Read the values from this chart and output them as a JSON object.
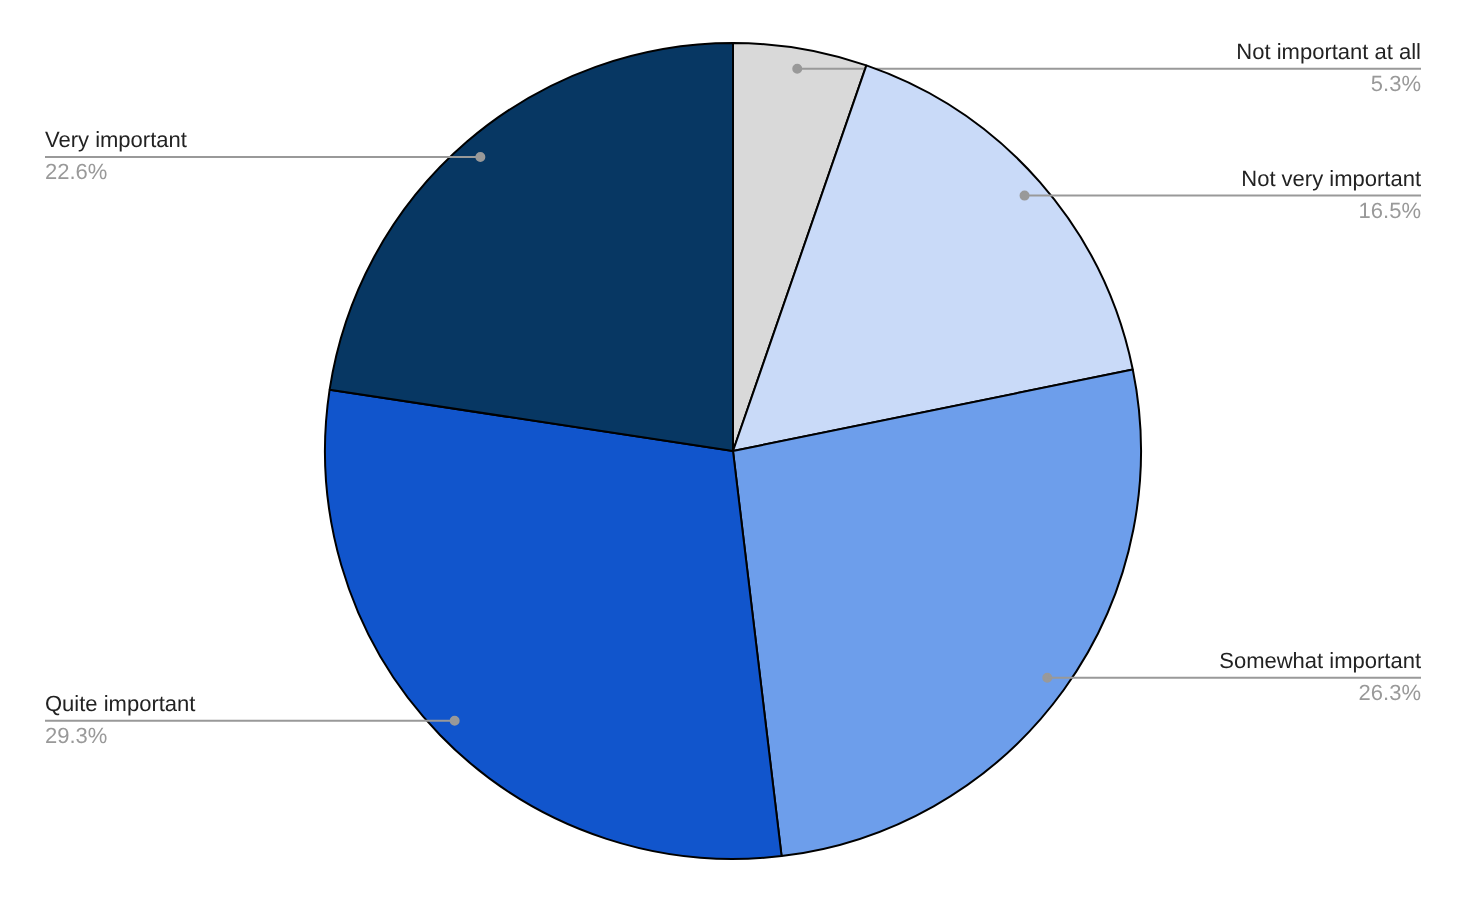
{
  "chart_data": {
    "type": "pie",
    "categories": [
      "Not important at all",
      "Not very important",
      "Somewhat important",
      "Quite important",
      "Very important"
    ],
    "values": [
      5.3,
      16.5,
      26.3,
      29.3,
      22.6
    ],
    "value_labels": [
      "5.3%",
      "16.5%",
      "26.3%",
      "29.3%",
      "22.6%"
    ],
    "colors": [
      "#d9d9d9",
      "#c9daf8",
      "#6d9eeb",
      "#1155cc",
      "#073763"
    ]
  }
}
